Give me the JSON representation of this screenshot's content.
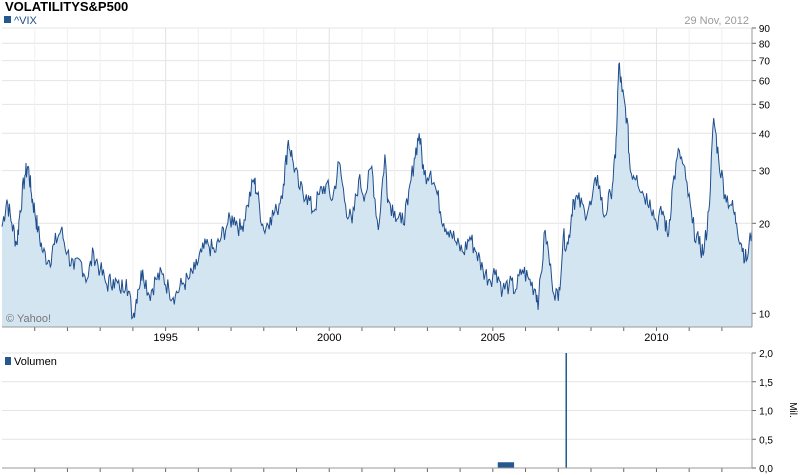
{
  "header": {
    "title": "VOLATILITYS&P500",
    "date": "29 Nov, 2012",
    "watermark": "© Yahoo!"
  },
  "colors": {
    "line": "#1f4e8c",
    "fill": "#d4e5f2",
    "grid": "#e4e4e4",
    "volume_bar": "#24588f",
    "text": "#000000",
    "muted": "#9a9a9a"
  },
  "chart_data": [
    {
      "type": "area",
      "legend": "^VIX",
      "scale": "log",
      "ylim": [
        9,
        90
      ],
      "xlim": [
        1990.0,
        2012.92
      ],
      "y_ticks": [
        10,
        20,
        30,
        40,
        50,
        60,
        70,
        80,
        90
      ],
      "x_ticks": [
        "1995",
        "2000",
        "2005",
        "2010"
      ],
      "x_tick_values": [
        1995,
        2000,
        2005,
        2010
      ],
      "grid": true,
      "series": [
        {
          "x": [
            1990.0,
            1990.15,
            1990.3,
            1990.45,
            1990.55,
            1990.7,
            1990.8,
            1990.9,
            1991.0,
            1991.1,
            1991.25,
            1991.45,
            1991.6,
            1991.8,
            1992.0,
            1992.2,
            1992.4,
            1992.6,
            1992.8,
            1993.0,
            1993.2,
            1993.4,
            1993.6,
            1993.8,
            1994.0,
            1994.15,
            1994.3,
            1994.5,
            1994.7,
            1994.9,
            1995.1,
            1995.3,
            1995.5,
            1995.7,
            1995.9,
            1996.1,
            1996.3,
            1996.5,
            1996.7,
            1996.9,
            1997.1,
            1997.3,
            1997.5,
            1997.7,
            1997.8,
            1998.0,
            1998.2,
            1998.4,
            1998.6,
            1998.75,
            1998.9,
            1999.1,
            1999.3,
            1999.5,
            1999.7,
            1999.9,
            2000.1,
            2000.3,
            2000.5,
            2000.7,
            2000.9,
            2001.1,
            2001.3,
            2001.5,
            2001.7,
            2001.8,
            2002.0,
            2002.2,
            2002.4,
            2002.6,
            2002.75,
            2002.9,
            2003.1,
            2003.3,
            2003.5,
            2003.7,
            2003.9,
            2004.1,
            2004.3,
            2004.5,
            2004.7,
            2004.9,
            2005.1,
            2005.3,
            2005.5,
            2005.7,
            2005.9,
            2006.1,
            2006.3,
            2006.4,
            2006.6,
            2006.8,
            2007.0,
            2007.15,
            2007.3,
            2007.45,
            2007.6,
            2007.8,
            2008.0,
            2008.2,
            2008.4,
            2008.6,
            2008.75,
            2008.85,
            2008.95,
            2009.1,
            2009.2,
            2009.4,
            2009.6,
            2009.8,
            2010.0,
            2010.2,
            2010.35,
            2010.5,
            2010.7,
            2010.9,
            2011.1,
            2011.3,
            2011.45,
            2011.6,
            2011.75,
            2011.9,
            2012.1,
            2012.3,
            2012.45,
            2012.6,
            2012.75,
            2012.92
          ],
          "y": [
            19.5,
            24,
            20,
            17,
            22,
            29,
            31,
            25,
            22,
            19,
            16,
            15,
            17,
            19,
            16,
            14,
            15,
            13,
            16,
            14,
            12.5,
            13,
            12,
            13,
            9.7,
            12,
            14,
            11.5,
            13,
            13.5,
            12,
            11.5,
            12.5,
            13,
            14,
            16,
            17,
            16,
            18,
            20,
            21,
            19,
            23,
            28,
            25,
            19,
            21,
            22,
            27,
            38,
            32,
            26,
            25,
            22,
            25,
            27,
            24,
            32,
            23,
            20,
            28,
            25,
            31,
            19,
            34,
            24,
            22,
            20,
            23,
            33,
            40,
            29,
            30,
            25,
            20,
            19,
            17,
            16,
            18,
            16,
            14,
            13,
            14,
            12,
            12.5,
            12,
            14,
            13,
            12,
            11,
            19,
            13,
            11,
            18,
            17,
            24,
            24,
            22,
            23,
            29,
            21,
            25,
            33,
            68,
            55,
            45,
            30,
            29,
            25,
            24,
            20,
            22,
            18,
            27,
            35,
            28,
            20,
            17,
            16,
            22,
            45,
            33,
            25,
            23,
            20,
            17,
            15,
            19
          ]
        }
      ]
    },
    {
      "type": "bar",
      "legend": "Volumen",
      "ylabel": "Mil.",
      "ylim": [
        0,
        2.0
      ],
      "y_ticks": [
        "0,0",
        "0,5",
        "1,0",
        "1,5",
        "2,0"
      ],
      "y_tick_values": [
        0,
        0.5,
        1.0,
        1.5,
        2.0
      ],
      "bars": [
        {
          "x_start": 2005.15,
          "x_end": 2005.65,
          "value": 0.1
        },
        {
          "x_start": 2007.22,
          "x_end": 2007.26,
          "value": 2.0
        }
      ]
    }
  ]
}
